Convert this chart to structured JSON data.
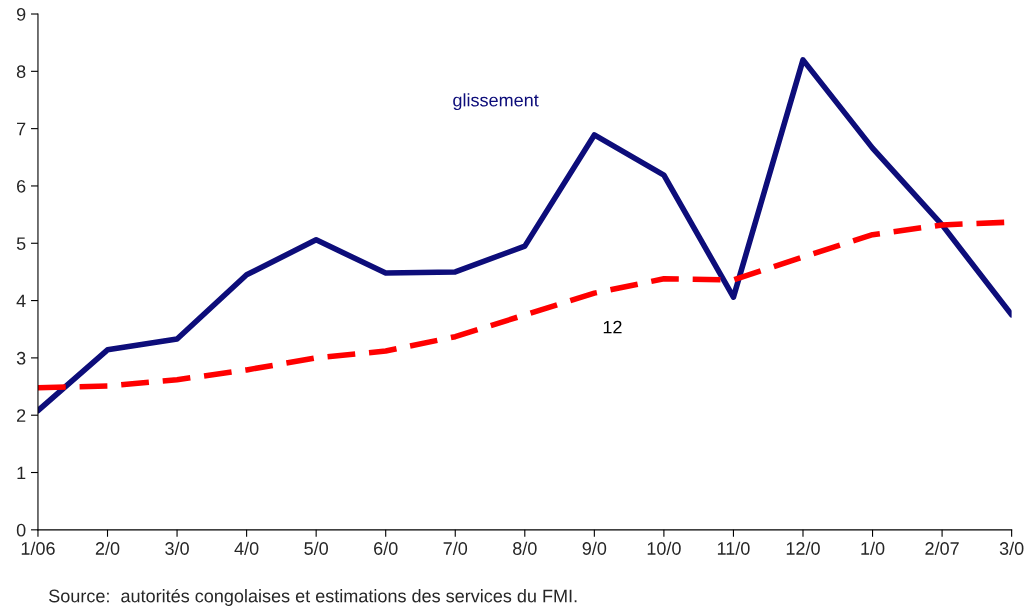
{
  "chart_data": {
    "type": "line",
    "categories": [
      "1/06",
      "2/0",
      "3/0",
      "4/0",
      "5/0",
      "6/0",
      "7/0",
      "8/0",
      "9/0",
      "10/0",
      "11/0",
      "12/0",
      "1/0",
      "2/07",
      "3/0"
    ],
    "series": [
      {
        "name": "glissement",
        "color": "#0d0d7a",
        "line_style": "solid",
        "values": [
          2.08,
          3.14,
          3.33,
          4.45,
          5.06,
          4.48,
          4.5,
          4.95,
          6.89,
          6.19,
          4.06,
          8.2,
          6.66,
          5.32,
          3.75
        ]
      },
      {
        "name": "12",
        "color": "#ff0000",
        "line_style": "dashed",
        "values": [
          2.48,
          2.51,
          2.62,
          2.79,
          3.0,
          3.12,
          3.37,
          3.75,
          4.13,
          4.38,
          4.36,
          4.76,
          5.15,
          5.32,
          5.37
        ]
      }
    ],
    "ylim": [
      0,
      9
    ],
    "yticks": [
      0,
      1,
      2,
      3,
      4,
      5,
      6,
      7,
      8,
      9
    ],
    "grid": false,
    "legend": false,
    "marker": "none",
    "annotations": [
      "Source:  autorités congolaises et estimations des services du FMI."
    ]
  }
}
